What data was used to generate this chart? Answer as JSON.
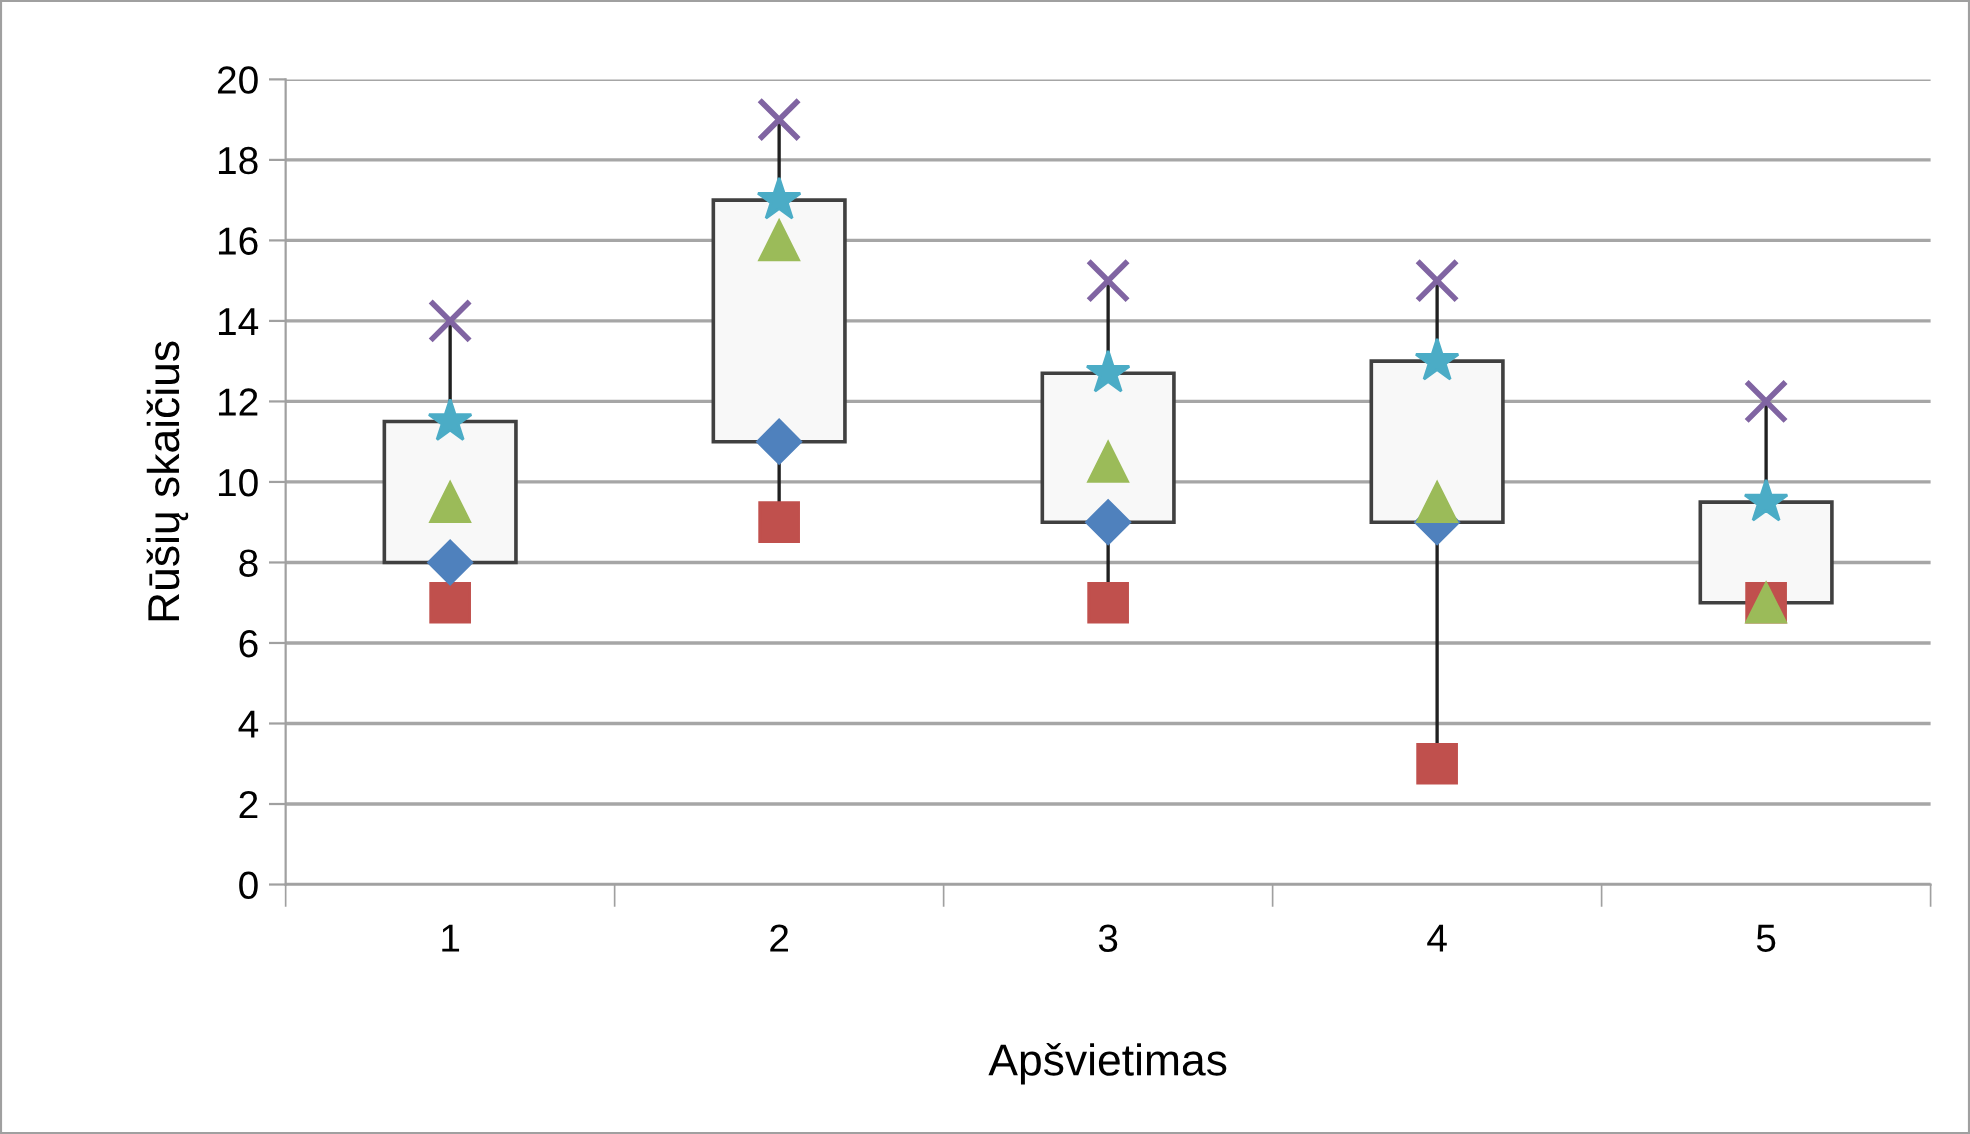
{
  "chart_data": {
    "type": "box",
    "xlabel": "Apšvietimas",
    "ylabel": "Rūšių skaičius",
    "categories": [
      "1",
      "2",
      "3",
      "4",
      "5"
    ],
    "boxes": [
      {
        "low": 7,
        "q1": 8,
        "median": 9.5,
        "q3": 11.5,
        "high": 14
      },
      {
        "low": 9,
        "q1": 11,
        "median": 16,
        "q3": 17,
        "high": 19
      },
      {
        "low": 7,
        "q1": 9,
        "median": 10.5,
        "q3": 12.7,
        "high": 15
      },
      {
        "low": 3,
        "q1": 9,
        "median": 9.5,
        "q3": 13,
        "high": 15
      },
      {
        "low": 7,
        "q1": 7,
        "median": 7,
        "q3": 9.5,
        "high": 12
      }
    ],
    "series": [
      {
        "type": "scatter",
        "x": [
          "1",
          "2",
          "3",
          "4",
          "5"
        ],
        "color": "#c0504d",
        "marker": "square",
        "values": [
          7,
          9,
          7,
          3,
          7
        ]
      },
      {
        "type": "scatter",
        "x": [
          "1",
          "2",
          "3",
          "4",
          "5"
        ],
        "color": "#4f81bd",
        "marker": "diamond",
        "values": [
          8,
          11,
          9,
          9,
          null
        ]
      },
      {
        "type": "scatter",
        "x": [
          "1",
          "2",
          "3",
          "4",
          "5"
        ],
        "color": "#4bacc6",
        "marker": "star",
        "values": [
          11.5,
          17,
          12.7,
          13,
          9.5
        ]
      },
      {
        "type": "scatter",
        "x": [
          "1",
          "2",
          "3",
          "4",
          "5"
        ],
        "color": "#8064a2",
        "marker": "cross",
        "values": [
          14,
          19,
          15,
          15,
          12
        ]
      }
    ],
    "ylim": [
      0,
      20
    ],
    "yticks": [
      0,
      2,
      4,
      6,
      8,
      10,
      12,
      14,
      16,
      18,
      20
    ],
    "grid": "y",
    "legend": false
  }
}
